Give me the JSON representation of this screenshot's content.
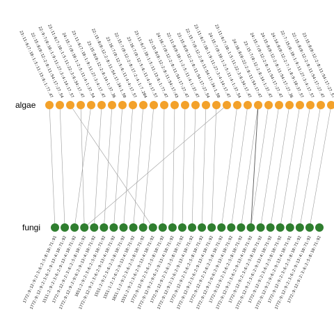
{
  "rows": {
    "top_label": "algae",
    "bottom_label": "fungi"
  },
  "colors": {
    "top_node": "#F3A12A",
    "bottom_node": "#2F7E2F",
    "link": "#9A9A9A",
    "link_highlight": "#555555"
  },
  "top_labels": [
    "23:11:6(7:10:1:5:11:13:6:1:77.47",
    "22:15:8(0:12:2:8:11:54:17:27.54",
    "22:9:7(0:10:1:9:11:27:3:4:14:17.57",
    "23:11:6(7:10:1:5:11:22:3:6:34:17.47",
    "24:15:7(0:10:1:2:5:11:4:1:37.54",
    "23:11:6(7:10:1:9:11:27:3:4:17.47",
    "23:15:8(0:12:2:8:14:1:37.36",
    "22:15:8(0:12:2:8:11:54:17:34:1.50",
    "23:16:7(0:12:5:6:11:4:4:17.57",
    "22:15:7(0:12:2:8:17:2:4:1:7.204",
    "23:16:7(0:12:5:6:11:4:4:17.57",
    "23:11:6(7:10:1:5:11:13:6:1:77.47",
    "22:15:8(0:12:2:8:11:54:17:43",
    "24:16:7(0:12:2:8:11:54:17:27.47",
    "22:11:8(0:10:1:2:5:11:4:1:37.47",
    "23:15:8(0:12:2:8:11:54:17:27.54",
    "22:15:7(0:12:2:8:11:54:17:34:1.50",
    "23:11:6(7:10:1:9:11:27:3:4:14:17.47",
    "24:15:7(0:10:1:2:5:11:4:1:37.54",
    "23:11:6(7:10:1:5:11:22:3:6:34:17.47",
    "24:16:8(0:22:2:8:11:54:17:47",
    "23:15:7(0:12:2:8:14:1:37.47",
    "24:15:7(0:12:2:8:11:54:17:27.47",
    "24:15:8(0:12:2:8:11:54:17:27.36",
    "24:14:0(0:12:2:7:1:8:9:10:37.57",
    "22:7:15(0:10:1:9:11:27:3:4:17.57",
    "22:15:8(0:12:2:8:11:54:17:27.47",
    "23:15:8(0:12:2:8:11:54:17:27.57"
  ],
  "bottom_labels": [
    "1772:9:12:9:2:3:6:2:5:8:10:71:91",
    "1772:9:12:9:2:3:6:2:9:13:4:10:71:92",
    "1511:2:9:2:3:6:2:9:13:4:10:71:92",
    "1772:9:12:9:2:3:6:2:5:8:10:71:92",
    "1772:9:12:9:2:9:6:2:9:13:4:10:71:92",
    "1651:2:9:2:3:6:2:5:8:10:71:92",
    "1772:9:12:9:2:3:6:2:9:13:4:10:71:92",
    "1551:2:9:2:3:6:2:5:8:10:71:92",
    "1551:1:2:3:6:2:9:13:4:10:71:92",
    "1651:1:2:9:2:3:6:2:5:8:10:71:92",
    "1551:2:9:2:3:6:2:9:13:4:10:71:92",
    "1772:9:12:9:2:3:6:2:5:8:10:71:92",
    "1772:9:12:9:2:9:6:2:9:13:4:10:71:92",
    "1772:9:12:9:2:3:6:2:5:8:10:71:92",
    "1772:9:12:9:2:3:6:2:9:13:4:10:71:92",
    "1772:9:12:9:2:3:6:2:5:8:10:71:92",
    "1772:9:12:9:2:3:6:2:9:13:4:10:71:92",
    "1772:9:12:9:2:3:6:2:5:8:10:71:92",
    "1772:9:12:9:2:9:6:2:9:13:4:10:71:92",
    "1772:9:12:9:2:3:6:2:5:8:10:71:92",
    "1772:9:12:9:2:3:6:2:9:13:4:10:71:92",
    "1772:9:12:9:2:3:6:2:5:8:10:71:92",
    "1772:9:12:9:2:3:6:2:9:13:4:10:71:92",
    "1772:9:12:9:2:3:6:2:5:8:10:71:92",
    "1772:9:12:9:2:9:6:2:9:13:4:10:71:91",
    "1772:9:12:9:2:3:6:2:5:8:10:71:92",
    "1772:9:12:9:2:3:6:2:9:13:4:10:71:92",
    "1772:9:12:9:2:3:6:2:5:8:10:71:92"
  ],
  "links": [
    [
      0,
      0
    ],
    [
      1,
      1
    ],
    [
      2,
      10
    ],
    [
      3,
      3
    ],
    [
      4,
      2
    ],
    [
      5,
      4
    ],
    [
      6,
      5
    ],
    [
      7,
      6
    ],
    [
      8,
      7
    ],
    [
      9,
      8
    ],
    [
      10,
      9
    ],
    [
      11,
      11
    ],
    [
      12,
      12
    ],
    [
      13,
      13
    ],
    [
      14,
      14
    ],
    [
      15,
      15
    ],
    [
      16,
      16
    ],
    [
      17,
      3
    ],
    [
      18,
      17
    ],
    [
      19,
      18
    ],
    [
      20,
      19
    ],
    [
      21,
      20
    ],
    [
      22,
      21
    ],
    [
      23,
      22
    ],
    [
      24,
      23
    ],
    [
      25,
      24
    ],
    [
      26,
      25
    ],
    [
      27,
      26
    ]
  ],
  "highlighted_links": [
    [
      20,
      20
    ]
  ]
}
